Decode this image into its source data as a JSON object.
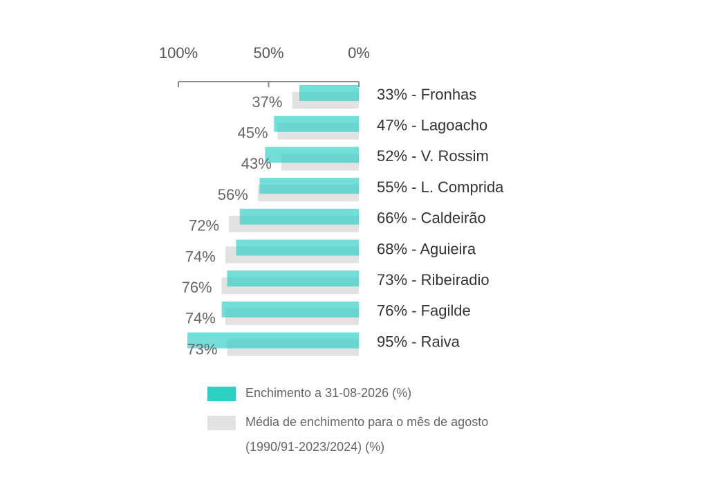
{
  "chart_data": {
    "type": "bar",
    "orientation": "horizontal",
    "x_reversed": true,
    "xaxis_position": "top",
    "categories": [
      "33% - Fronhas",
      "47% - Lagoacho",
      "52% - V. Rossim",
      "55% - L. Comprida",
      "66% - Caldeirão",
      "68% - Aguieira",
      "73% - Ribeiradio",
      "76% - Fagilde",
      "95% - Raiva"
    ],
    "series": [
      {
        "name": "Enchimento a 31-08-2026 (%)",
        "color": "#2ecfc4",
        "values": [
          33,
          47,
          52,
          55,
          66,
          68,
          73,
          76,
          95
        ]
      },
      {
        "name": "Média de enchimento para o mês de agosto (1990/91-2023/2024) (%)",
        "color": "#e2e2e2",
        "values": [
          37,
          45,
          43,
          56,
          72,
          74,
          76,
          74,
          73
        ],
        "value_labels": [
          "37%",
          "45%",
          "43%",
          "56%",
          "72%",
          "74%",
          "76%",
          "74%",
          "73%"
        ]
      }
    ],
    "xlim": [
      0,
      100
    ],
    "xticks": [
      {
        "value": 100,
        "label": "100%"
      },
      {
        "value": 50,
        "label": "50%"
      },
      {
        "value": 0,
        "label": "0%"
      }
    ]
  }
}
